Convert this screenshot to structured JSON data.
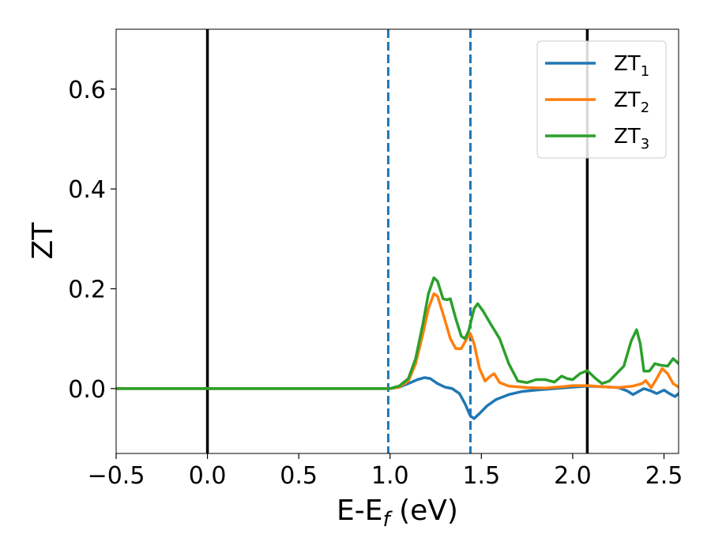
{
  "chart_data": {
    "type": "line",
    "xlabel": "E-E",
    "xlabel_sub": "f",
    "xlabel_unit": " (eV)",
    "ylabel": "ZT",
    "xlim": [
      -0.5,
      2.58
    ],
    "ylim": [
      -0.13,
      0.72
    ],
    "xticks": [
      -0.5,
      0.0,
      0.5,
      1.0,
      1.5,
      2.0,
      2.5
    ],
    "xtick_labels": [
      "−0.5",
      "0.0",
      "0.5",
      "1.0",
      "1.5",
      "2.0",
      "2.5"
    ],
    "yticks": [
      0.0,
      0.2,
      0.4,
      0.6
    ],
    "ytick_labels": [
      "0.0",
      "0.2",
      "0.4",
      "0.6"
    ],
    "grid": false,
    "legend_position": "top-right",
    "vlines": [
      {
        "x": 0.0,
        "style": "solid",
        "color": "#000000"
      },
      {
        "x": 2.08,
        "style": "solid",
        "color": "#000000"
      },
      {
        "x": 0.99,
        "style": "dashed",
        "color": "#1f77b4"
      },
      {
        "x": 1.44,
        "style": "dashed",
        "color": "#1f77b4"
      }
    ],
    "series": [
      {
        "name": "ZT",
        "sub": "1",
        "color": "#1f77b4",
        "points": [
          [
            -0.5,
            0
          ],
          [
            0.9,
            0
          ],
          [
            1.0,
            0.0
          ],
          [
            1.05,
            0.003
          ],
          [
            1.1,
            0.01
          ],
          [
            1.15,
            0.018
          ],
          [
            1.19,
            0.022
          ],
          [
            1.22,
            0.02
          ],
          [
            1.26,
            0.01
          ],
          [
            1.3,
            0.003
          ],
          [
            1.34,
            0.0
          ],
          [
            1.38,
            -0.01
          ],
          [
            1.41,
            -0.03
          ],
          [
            1.44,
            -0.055
          ],
          [
            1.46,
            -0.06
          ],
          [
            1.49,
            -0.05
          ],
          [
            1.53,
            -0.035
          ],
          [
            1.58,
            -0.022
          ],
          [
            1.65,
            -0.012
          ],
          [
            1.72,
            -0.006
          ],
          [
            1.8,
            -0.003
          ],
          [
            1.9,
            0.0
          ],
          [
            2.0,
            0.003
          ],
          [
            2.08,
            0.005
          ],
          [
            2.15,
            0.004
          ],
          [
            2.2,
            0.003
          ],
          [
            2.25,
            0.002
          ],
          [
            2.3,
            -0.005
          ],
          [
            2.33,
            -0.012
          ],
          [
            2.36,
            -0.006
          ],
          [
            2.39,
            0.0
          ],
          [
            2.43,
            -0.005
          ],
          [
            2.46,
            -0.01
          ],
          [
            2.5,
            -0.003
          ],
          [
            2.53,
            -0.01
          ],
          [
            2.56,
            -0.016
          ],
          [
            2.58,
            -0.01
          ]
        ]
      },
      {
        "name": "ZT",
        "sub": "2",
        "color": "#ff7f0e",
        "points": [
          [
            -0.5,
            0
          ],
          [
            0.9,
            0
          ],
          [
            1.0,
            0.0
          ],
          [
            1.05,
            0.003
          ],
          [
            1.1,
            0.015
          ],
          [
            1.14,
            0.05
          ],
          [
            1.18,
            0.11
          ],
          [
            1.21,
            0.16
          ],
          [
            1.24,
            0.19
          ],
          [
            1.26,
            0.185
          ],
          [
            1.29,
            0.15
          ],
          [
            1.33,
            0.1
          ],
          [
            1.36,
            0.08
          ],
          [
            1.39,
            0.08
          ],
          [
            1.42,
            0.1
          ],
          [
            1.44,
            0.11
          ],
          [
            1.46,
            0.09
          ],
          [
            1.49,
            0.04
          ],
          [
            1.52,
            0.015
          ],
          [
            1.55,
            0.025
          ],
          [
            1.57,
            0.03
          ],
          [
            1.6,
            0.012
          ],
          [
            1.65,
            0.005
          ],
          [
            1.75,
            0.002
          ],
          [
            1.85,
            0.001
          ],
          [
            1.95,
            0.004
          ],
          [
            2.0,
            0.006
          ],
          [
            2.08,
            0.006
          ],
          [
            2.15,
            0.004
          ],
          [
            2.25,
            0.002
          ],
          [
            2.33,
            0.005
          ],
          [
            2.38,
            0.01
          ],
          [
            2.4,
            0.016
          ],
          [
            2.43,
            0.002
          ],
          [
            2.46,
            0.02
          ],
          [
            2.49,
            0.04
          ],
          [
            2.52,
            0.03
          ],
          [
            2.55,
            0.01
          ],
          [
            2.58,
            0.003
          ]
        ]
      },
      {
        "name": "ZT",
        "sub": "3",
        "color": "#2ca02c",
        "points": [
          [
            -0.5,
            0
          ],
          [
            0.9,
            0
          ],
          [
            1.0,
            0.0
          ],
          [
            1.05,
            0.005
          ],
          [
            1.1,
            0.02
          ],
          [
            1.14,
            0.06
          ],
          [
            1.18,
            0.13
          ],
          [
            1.21,
            0.19
          ],
          [
            1.24,
            0.222
          ],
          [
            1.26,
            0.215
          ],
          [
            1.29,
            0.18
          ],
          [
            1.31,
            0.178
          ],
          [
            1.33,
            0.18
          ],
          [
            1.36,
            0.14
          ],
          [
            1.39,
            0.105
          ],
          [
            1.41,
            0.1
          ],
          [
            1.43,
            0.115
          ],
          [
            1.46,
            0.16
          ],
          [
            1.48,
            0.17
          ],
          [
            1.51,
            0.155
          ],
          [
            1.55,
            0.13
          ],
          [
            1.6,
            0.1
          ],
          [
            1.65,
            0.05
          ],
          [
            1.7,
            0.015
          ],
          [
            1.75,
            0.012
          ],
          [
            1.8,
            0.018
          ],
          [
            1.85,
            0.018
          ],
          [
            1.9,
            0.013
          ],
          [
            1.94,
            0.025
          ],
          [
            1.97,
            0.02
          ],
          [
            2.0,
            0.018
          ],
          [
            2.04,
            0.03
          ],
          [
            2.08,
            0.036
          ],
          [
            2.12,
            0.022
          ],
          [
            2.16,
            0.01
          ],
          [
            2.2,
            0.015
          ],
          [
            2.24,
            0.03
          ],
          [
            2.28,
            0.045
          ],
          [
            2.32,
            0.095
          ],
          [
            2.35,
            0.118
          ],
          [
            2.37,
            0.09
          ],
          [
            2.39,
            0.035
          ],
          [
            2.42,
            0.035
          ],
          [
            2.45,
            0.05
          ],
          [
            2.48,
            0.047
          ],
          [
            2.52,
            0.045
          ],
          [
            2.55,
            0.06
          ],
          [
            2.58,
            0.05
          ]
        ]
      }
    ]
  }
}
